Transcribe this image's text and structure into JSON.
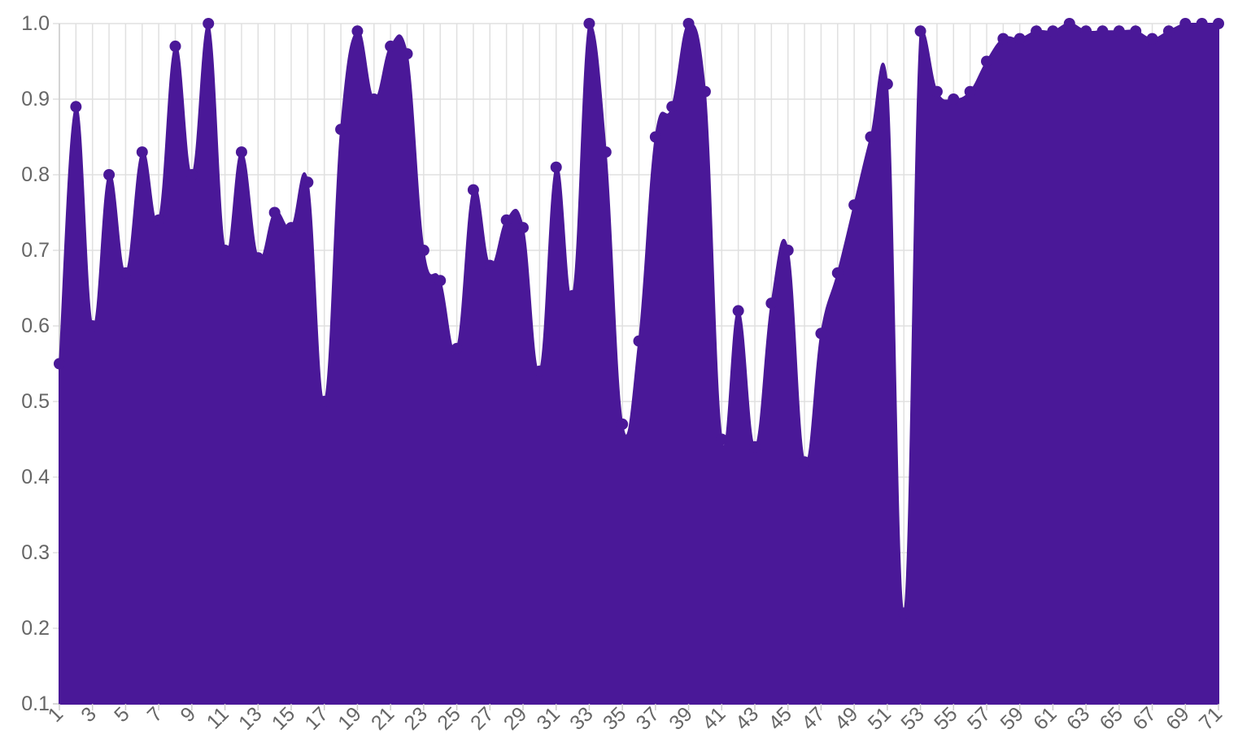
{
  "chart_data": {
    "type": "area",
    "title": "",
    "xlabel": "",
    "ylabel": "",
    "x": [
      1,
      2,
      3,
      4,
      5,
      6,
      7,
      8,
      9,
      10,
      11,
      12,
      13,
      14,
      15,
      16,
      17,
      18,
      19,
      20,
      21,
      22,
      23,
      24,
      25,
      26,
      27,
      28,
      29,
      30,
      31,
      32,
      33,
      34,
      35,
      36,
      37,
      38,
      39,
      40,
      41,
      42,
      43,
      44,
      45,
      46,
      47,
      48,
      49,
      50,
      51,
      52,
      53,
      54,
      55,
      56,
      57,
      58,
      59,
      60,
      61,
      62,
      63,
      64,
      65,
      66,
      67,
      68,
      69,
      70,
      71
    ],
    "x_tick_labels": [
      "1",
      "3",
      "5",
      "7",
      "9",
      "11",
      "13",
      "15",
      "17",
      "19",
      "21",
      "23",
      "25",
      "27",
      "29",
      "31",
      "33",
      "35",
      "37",
      "39",
      "41",
      "43",
      "45",
      "47",
      "49",
      "51",
      "53",
      "55",
      "57",
      "59",
      "61",
      "63",
      "65",
      "67",
      "69",
      "71"
    ],
    "ylim": [
      0.1,
      1.0
    ],
    "y_ticks": [
      "0.1",
      "0.2",
      "0.3",
      "0.4",
      "0.5",
      "0.6",
      "0.7",
      "0.8",
      "0.9",
      "1.0"
    ],
    "grid": true,
    "series": [
      {
        "color": "#4a1898",
        "values": [
          0.55,
          0.89,
          0.6,
          0.8,
          0.67,
          0.83,
          0.74,
          0.97,
          0.8,
          1.0,
          0.7,
          0.83,
          0.69,
          0.75,
          0.73,
          0.79,
          0.5,
          0.86,
          0.99,
          0.9,
          0.97,
          0.96,
          0.7,
          0.66,
          0.57,
          0.78,
          0.68,
          0.74,
          0.73,
          0.54,
          0.81,
          0.64,
          1.0,
          0.83,
          0.47,
          0.58,
          0.85,
          0.89,
          1.0,
          0.91,
          0.45,
          0.62,
          0.44,
          0.63,
          0.7,
          0.42,
          0.59,
          0.67,
          0.76,
          0.85,
          0.92,
          0.22,
          0.99,
          0.91,
          0.9,
          0.91,
          0.95,
          0.98,
          0.98,
          0.99,
          0.99,
          1.0,
          0.99,
          0.99,
          0.99,
          0.99,
          0.98,
          0.99,
          1.0,
          1.0,
          1.0
        ],
        "points_marked": true
      }
    ]
  }
}
